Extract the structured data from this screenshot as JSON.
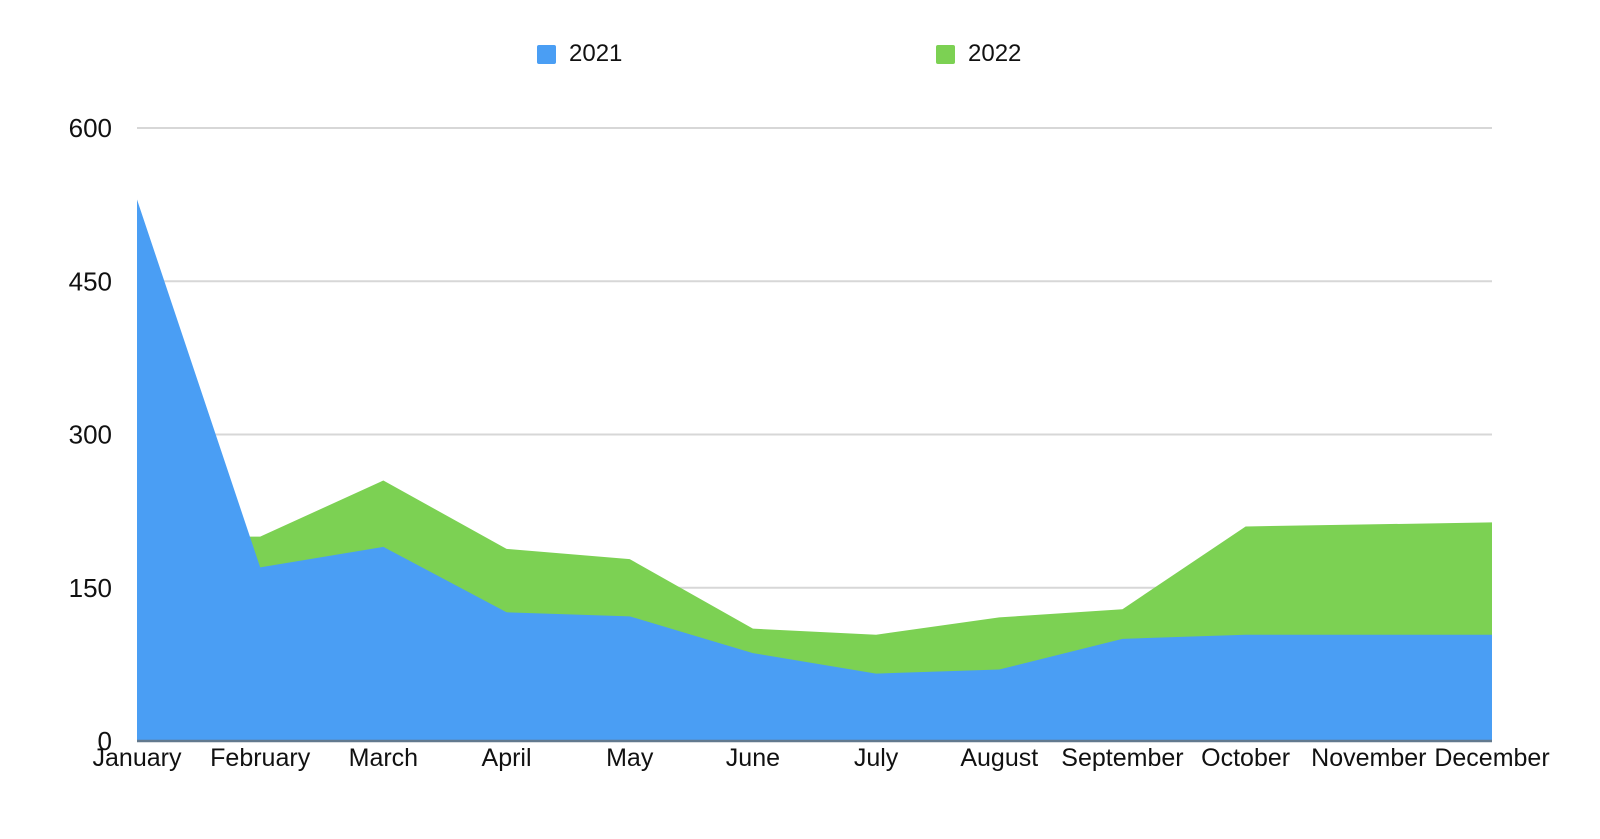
{
  "chart_data": {
    "type": "area",
    "title": "",
    "categories": [
      "January",
      "February",
      "March",
      "April",
      "May",
      "June",
      "July",
      "August",
      "September",
      "October",
      "November",
      "December"
    ],
    "series": [
      {
        "name": "2021",
        "color": "#4A9EF4",
        "values": [
          530,
          170,
          190,
          126,
          122,
          86,
          66,
          70,
          100,
          104,
          104,
          104
        ]
      },
      {
        "name": "2022",
        "color": "#7CD153",
        "values": [
          200,
          200,
          255,
          188,
          178,
          110,
          104,
          121,
          129,
          210,
          212,
          214
        ]
      }
    ],
    "xlabel": "",
    "ylabel": "",
    "ylim": [
      0,
      600
    ],
    "yticks": [
      0,
      150,
      300,
      450,
      600
    ],
    "grid": true,
    "legend_position": "top",
    "stacking": "none",
    "draw_order": "2022 drawn behind, 2021 drawn in front"
  },
  "colors": {
    "background": "#FFFFFF",
    "gridline": "#D7D7D7",
    "axis_line": "#62798E",
    "text": "#111111"
  }
}
